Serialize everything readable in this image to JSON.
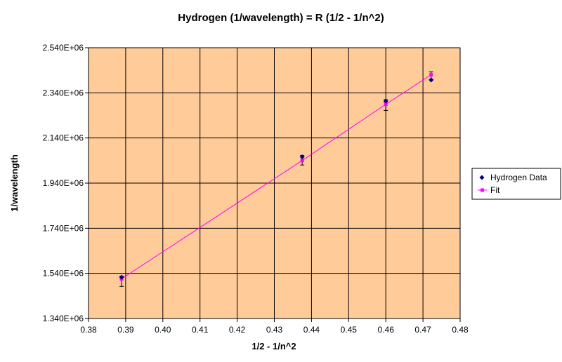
{
  "chart_data": {
    "type": "scatter",
    "title": "Hydrogen (1/wavelength) = R (1/2 - 1/n^2)",
    "xlabel": "1/2 - 1/n^2",
    "ylabel": "1/wavelength",
    "xlim": [
      0.38,
      0.48
    ],
    "ylim": [
      1340000,
      2540000
    ],
    "x_ticks": [
      0.38,
      0.39,
      0.4,
      0.41,
      0.42,
      0.43,
      0.44,
      0.45,
      0.46,
      0.47,
      0.48
    ],
    "x_tick_labels": [
      "0.38",
      "0.39",
      "0.40",
      "0.41",
      "0.42",
      "0.43",
      "0.44",
      "0.45",
      "0.46",
      "0.47",
      "0.48"
    ],
    "y_ticks": [
      1340000,
      1540000,
      1740000,
      1940000,
      2140000,
      2340000,
      2540000
    ],
    "y_tick_labels": [
      "1.340E+06",
      "1.540E+06",
      "1.740E+06",
      "1.940E+06",
      "2.140E+06",
      "2.340E+06",
      "2.540E+06"
    ],
    "grid": true,
    "legend_position": "right",
    "plot_background": "#FFCC99",
    "series": [
      {
        "name": "Hydrogen Data",
        "color": "#000080",
        "marker": "diamond",
        "line": false,
        "x": [
          0.3889,
          0.4375,
          0.46,
          0.4722
        ],
        "y": [
          1523000,
          2056000,
          2303000,
          2397000
        ],
        "error_high": [
          1527000,
          2063000,
          2310000,
          2433000
        ],
        "error_low": [
          1482000,
          2020000,
          2262000,
          2400000
        ]
      },
      {
        "name": "Fit",
        "color": "#FF00FF",
        "marker": "square",
        "line": true,
        "x": [
          0.3889,
          0.4375,
          0.46,
          0.4722
        ],
        "y": [
          1516000,
          2040000,
          2289000,
          2420000
        ]
      }
    ]
  }
}
